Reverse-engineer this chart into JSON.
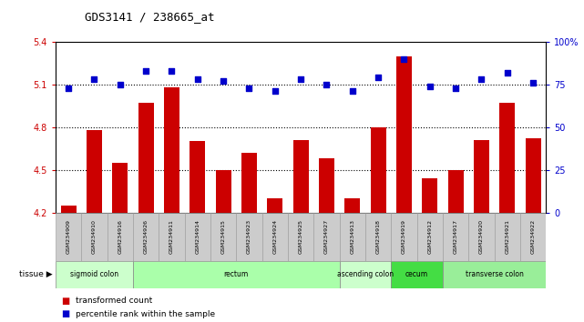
{
  "title": "GDS3141 / 238665_at",
  "samples": [
    "GSM234909",
    "GSM234910",
    "GSM234916",
    "GSM234926",
    "GSM234911",
    "GSM234914",
    "GSM234915",
    "GSM234923",
    "GSM234924",
    "GSM234925",
    "GSM234927",
    "GSM234913",
    "GSM234918",
    "GSM234919",
    "GSM234912",
    "GSM234917",
    "GSM234920",
    "GSM234921",
    "GSM234922"
  ],
  "bar_values": [
    4.25,
    4.78,
    4.55,
    4.97,
    5.08,
    4.7,
    4.5,
    4.62,
    4.3,
    4.71,
    4.58,
    4.3,
    4.8,
    5.3,
    4.44,
    4.5,
    4.71,
    4.97,
    4.72
  ],
  "dot_values": [
    73,
    78,
    75,
    83,
    83,
    78,
    77,
    73,
    71,
    78,
    75,
    71,
    79,
    90,
    74,
    73,
    78,
    82,
    76
  ],
  "bar_color": "#cc0000",
  "dot_color": "#0000cc",
  "ymin": 4.2,
  "ymax": 5.4,
  "ylim_left": [
    4.2,
    5.4
  ],
  "ylim_right": [
    0,
    100
  ],
  "yticks_left": [
    4.2,
    4.5,
    4.8,
    5.1,
    5.4
  ],
  "yticks_right": [
    0,
    25,
    50,
    75,
    100
  ],
  "ytick_labels_right": [
    "0",
    "25",
    "50",
    "75",
    "100%"
  ],
  "hlines": [
    5.1,
    4.8,
    4.5
  ],
  "tissue_groups": [
    {
      "label": "sigmoid colon",
      "start": 0,
      "end": 3,
      "color": "#ccffcc"
    },
    {
      "label": "rectum",
      "start": 3,
      "end": 11,
      "color": "#aaffaa"
    },
    {
      "label": "ascending colon",
      "start": 11,
      "end": 13,
      "color": "#ccffcc"
    },
    {
      "label": "cecum",
      "start": 13,
      "end": 15,
      "color": "#44dd44"
    },
    {
      "label": "transverse colon",
      "start": 15,
      "end": 19,
      "color": "#99ee99"
    }
  ],
  "tissue_label": "tissue",
  "legend_bar": "transformed count",
  "legend_dot": "percentile rank within the sample",
  "sample_area_color": "#cccccc",
  "sample_area_edge": "#999999"
}
